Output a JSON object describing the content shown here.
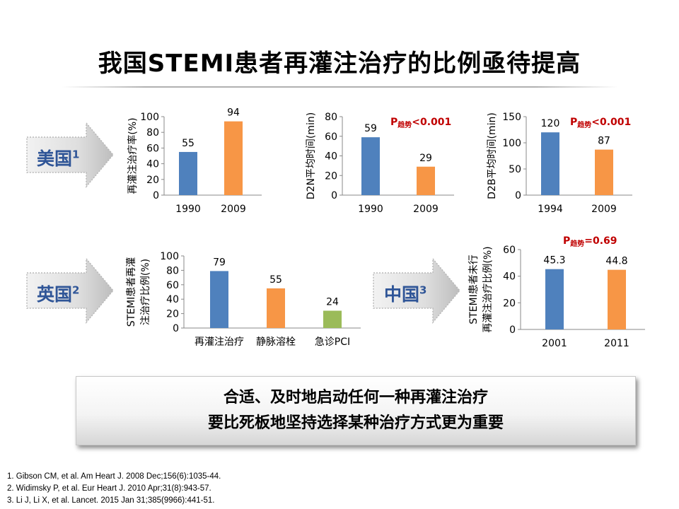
{
  "title": "我国STEMI患者再灌注治疗的比例亟待提高",
  "arrows": [
    {
      "label": "美国",
      "sup": "1"
    },
    {
      "label": "英国",
      "sup": "2"
    },
    {
      "label": "中国",
      "sup": "3"
    }
  ],
  "callout": {
    "line1": "合适、及时地启动任何一种再灌注治疗",
    "line2": "要比死板地坚持选择某种治疗方式更为重要"
  },
  "references": [
    "1. Gibson CM, et  al. Am Heart J. 2008 Dec;156(6):1035-44.",
    "2. Widimsky P, et al. Eur Heart J. 2010 Apr;31(8):943-57.",
    "3. Li J, Li X, et al. Lancet. 2015 Jan 31;385(9966):441-51."
  ],
  "colors": {
    "blue": "#4f81bd",
    "orange": "#f79646",
    "green": "#9bbb59",
    "red": "#c00000",
    "accent": "#2f5597"
  },
  "chart_data": [
    {
      "type": "bar",
      "region": "美国",
      "ylabel": [
        "再灌注治疗率(%)"
      ],
      "categories": [
        "1990",
        "2009"
      ],
      "values": [
        55,
        94
      ],
      "value_labels": [
        "55",
        "94"
      ],
      "bar_colors": [
        "#4f81bd",
        "#f79646"
      ],
      "ylim": [
        0,
        100
      ],
      "yticks": [
        0,
        20,
        40,
        60,
        80,
        100
      ],
      "annotation": null
    },
    {
      "type": "bar",
      "region": "美国",
      "ylabel": [
        "D2N平均时间(min)"
      ],
      "categories": [
        "1990",
        "2009"
      ],
      "values": [
        59,
        29
      ],
      "value_labels": [
        "59",
        "29"
      ],
      "bar_colors": [
        "#4f81bd",
        "#f79646"
      ],
      "ylim": [
        0,
        80
      ],
      "yticks": [
        0,
        20,
        40,
        60,
        80
      ],
      "annotation": {
        "p": "P",
        "sub": "趋势",
        "rest": "<0.001"
      }
    },
    {
      "type": "bar",
      "region": "美国",
      "ylabel": [
        "D2B平均时间(min)"
      ],
      "categories": [
        "1994",
        "2009"
      ],
      "values": [
        120,
        87
      ],
      "value_labels": [
        "120",
        "87"
      ],
      "bar_colors": [
        "#4f81bd",
        "#f79646"
      ],
      "ylim": [
        0,
        150
      ],
      "yticks": [
        0,
        50,
        100,
        150
      ],
      "annotation": {
        "p": "P",
        "sub": "趋势",
        "rest": "<0.001"
      }
    },
    {
      "type": "bar",
      "region": "英国",
      "ylabel": [
        "STEMI患者再灌",
        "注治疗比例(%)"
      ],
      "categories": [
        "再灌注治疗",
        "静脉溶栓",
        "急诊PCI"
      ],
      "values": [
        79,
        55,
        24
      ],
      "value_labels": [
        "79",
        "55",
        "24"
      ],
      "bar_colors": [
        "#4f81bd",
        "#f79646",
        "#9bbb59"
      ],
      "ylim": [
        0,
        100
      ],
      "yticks": [
        0,
        20,
        40,
        60,
        80,
        100
      ],
      "annotation": null
    },
    {
      "type": "bar",
      "region": "中国",
      "ylabel": [
        "STEMI患者未行",
        "再灌注治疗比例(%)"
      ],
      "categories": [
        "2001",
        "2011"
      ],
      "values": [
        45.3,
        44.8
      ],
      "value_labels": [
        "45.3",
        "44.8"
      ],
      "bar_colors": [
        "#4f81bd",
        "#f79646"
      ],
      "ylim": [
        0,
        60
      ],
      "yticks": [
        0,
        20,
        40,
        60
      ],
      "annotation": {
        "p": "P",
        "sub": "趋势",
        "rest": "=0.69"
      }
    }
  ]
}
